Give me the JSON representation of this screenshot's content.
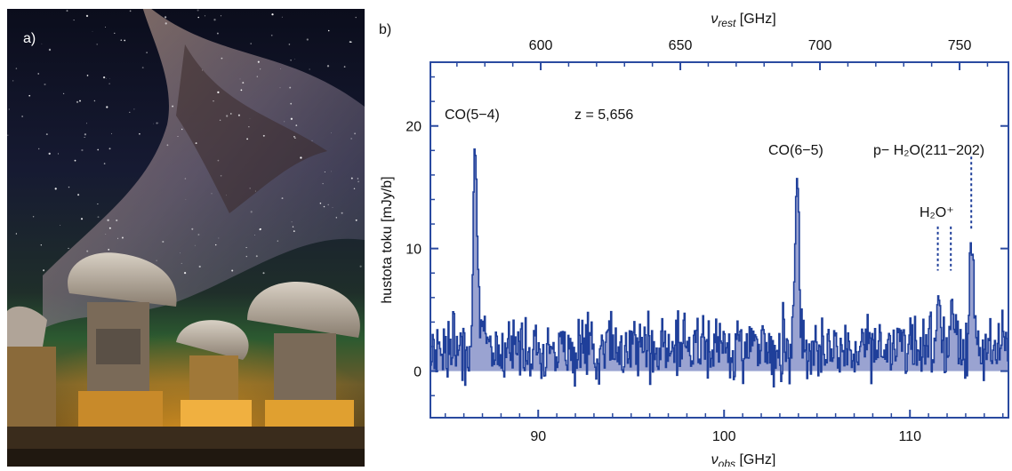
{
  "photo": {
    "panel_label": "a)"
  },
  "chart_data": {
    "type": "line",
    "panel_label": "b)",
    "title": "",
    "xlabel": "ν_obs [GHz]",
    "xlabel_main": "ν",
    "xlabel_sub": "obs",
    "xlabel_unit": " [GHz]",
    "x2label": "ν_rest [GHz]",
    "x2label_main": "ν",
    "x2label_sub": "rest",
    "x2label_unit": " [GHz]",
    "ylabel": "hustota toku [mJy/b]",
    "xlim": [
      84.2,
      115.3
    ],
    "ylim": [
      -3.8,
      25.2
    ],
    "x2lim": [
      560.5,
      767.5
    ],
    "xticks": [
      90,
      100,
      110
    ],
    "x2ticks": [
      600,
      650,
      700,
      750
    ],
    "yticks": [
      0,
      10,
      20
    ],
    "redshift_label": "z = 5,656",
    "annotations": [
      {
        "text": "CO(5−4)",
        "x": 86.6,
        "y": 20
      },
      {
        "text": "CO(6−5)",
        "x": 103.9,
        "y": 17
      },
      {
        "text": "p− H₂O(211−202)",
        "x": 113.3,
        "y": 17
      },
      {
        "text": "H₂O⁺",
        "x": 112.0,
        "y": 12.5
      }
    ],
    "marker_lines_x": [
      111.5,
      112.2,
      113.3
    ],
    "series": [
      {
        "style": "step",
        "fill": "below",
        "x_start": 84.2,
        "x_step": 0.05,
        "baseline": 2.0,
        "noise_seed": 7,
        "noise_amplitude": 2.6,
        "lines": [
          {
            "center": 86.6,
            "peak": 18.2,
            "width": 0.12
          },
          {
            "center": 103.9,
            "peak": 15.6,
            "width": 0.12
          },
          {
            "center": 111.5,
            "peak": 6.5,
            "width": 0.1
          },
          {
            "center": 112.2,
            "peak": 6.0,
            "width": 0.1
          },
          {
            "center": 113.3,
            "peak": 11.1,
            "width": 0.12
          }
        ]
      }
    ],
    "colors": {
      "line": "#1f3f9a",
      "fill": "#7884c2",
      "axis": "#2a4aa0"
    }
  }
}
